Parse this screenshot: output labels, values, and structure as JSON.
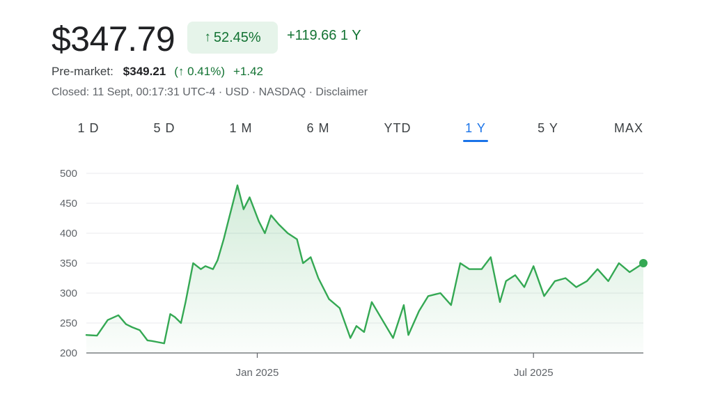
{
  "quote": {
    "price": "$347.79",
    "change_pct": "52.45%",
    "change_abs": "+119.66 1 Y",
    "arrow_icon": "arrow-up-icon"
  },
  "premarket": {
    "label": "Pre-market:",
    "price": "$349.21",
    "pct": "(↑ 0.41%)",
    "abs": "+1.42"
  },
  "closed_line": "Closed: 11 Sept, 00:17:31 UTC-4 · USD · NASDAQ · Disclaimer",
  "tabs": [
    {
      "label": "1 D"
    },
    {
      "label": "5 D"
    },
    {
      "label": "1 M"
    },
    {
      "label": "6 M"
    },
    {
      "label": "YTD"
    },
    {
      "label": "1 Y",
      "active": true
    },
    {
      "label": "5 Y"
    },
    {
      "label": "MAX"
    }
  ],
  "colors": {
    "up": "#137333",
    "line": "#34a853",
    "accent": "#1a73e8"
  },
  "chart_data": {
    "type": "area",
    "title": "",
    "xlabel": "",
    "ylabel": "",
    "ylim": [
      200,
      500
    ],
    "yticks": [
      200,
      250,
      300,
      350,
      400,
      450,
      500
    ],
    "x_range": [
      "2024-09-11",
      "2025-09-11"
    ],
    "xtick_labels": [
      {
        "label": "Jan 2025",
        "x": "2025-01-01"
      },
      {
        "label": "Jul 2025",
        "x": "2025-07-01"
      }
    ],
    "grid": true,
    "series": [
      {
        "x": [
          "2024-09-11",
          "2024-09-18",
          "2024-09-25",
          "2024-10-02",
          "2024-10-07",
          "2024-10-11",
          "2024-10-16",
          "2024-10-21",
          "2024-10-24",
          "2024-10-28",
          "2024-11-01",
          "2024-11-05",
          "2024-11-08",
          "2024-11-12",
          "2024-11-15",
          "2024-11-20",
          "2024-11-25",
          "2024-11-28",
          "2024-12-03",
          "2024-12-06",
          "2024-12-10",
          "2024-12-13",
          "2024-12-17",
          "2024-12-19",
          "2024-12-23",
          "2024-12-27",
          "2025-01-02",
          "2025-01-06",
          "2025-01-10",
          "2025-01-15",
          "2025-01-21",
          "2025-01-27",
          "2025-01-31",
          "2025-02-05",
          "2025-02-10",
          "2025-02-17",
          "2025-02-24",
          "2025-03-03",
          "2025-03-07",
          "2025-03-12",
          "2025-03-17",
          "2025-03-24",
          "2025-03-31",
          "2025-04-07",
          "2025-04-10",
          "2025-04-17",
          "2025-04-23",
          "2025-05-01",
          "2025-05-08",
          "2025-05-14",
          "2025-05-20",
          "2025-05-28",
          "2025-06-03",
          "2025-06-09",
          "2025-06-13",
          "2025-06-19",
          "2025-06-25",
          "2025-07-01",
          "2025-07-08",
          "2025-07-15",
          "2025-07-22",
          "2025-07-29",
          "2025-08-05",
          "2025-08-12",
          "2025-08-19",
          "2025-08-26",
          "2025-09-02",
          "2025-09-11"
        ],
        "y": [
          230,
          229,
          255,
          263,
          248,
          243,
          238,
          221,
          220,
          218,
          216,
          265,
          260,
          250,
          285,
          350,
          340,
          345,
          340,
          355,
          390,
          420,
          460,
          480,
          440,
          460,
          420,
          400,
          430,
          415,
          400,
          390,
          350,
          360,
          325,
          290,
          275,
          225,
          245,
          235,
          285,
          255,
          225,
          280,
          230,
          270,
          295,
          300,
          280,
          350,
          340,
          340,
          360,
          285,
          320,
          330,
          310,
          345,
          295,
          320,
          325,
          310,
          320,
          340,
          320,
          350,
          335,
          350
        ]
      }
    ]
  }
}
